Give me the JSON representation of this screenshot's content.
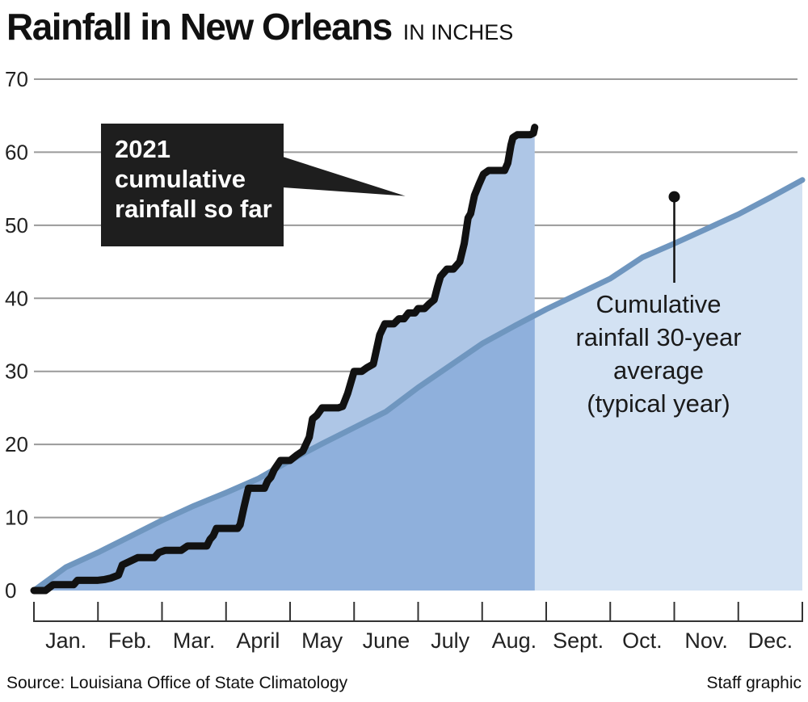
{
  "title": "Rainfall in New Orleans",
  "subtitle": "IN INCHES",
  "source": "Source: Louisiana Office of State Climatology",
  "credit": "Staff graphic",
  "colors": {
    "avg_line": "#6f96bf",
    "avg_fill": "#d3e2f3",
    "ytd_fill": "#aec6e6",
    "overlap_fill": "#8fb0dc",
    "line_2021": "#111111",
    "grid": "#9a9a9a",
    "callout_bg": "#1e1e1e"
  },
  "chart_data": {
    "type": "area",
    "ylim": [
      0,
      70
    ],
    "yticks": [
      0,
      10,
      20,
      30,
      40,
      50,
      60,
      70
    ],
    "ytick_labels": [
      "0",
      "10",
      "20",
      "30",
      "40",
      "50",
      "60",
      "70"
    ],
    "xlim": [
      0,
      12
    ],
    "months": [
      "Jan.",
      "Feb.",
      "Mar.",
      "April",
      "May",
      "June",
      "July",
      "Aug.",
      "Sept.",
      "Oct.",
      "Nov.",
      "Dec."
    ],
    "grid": true,
    "series": [
      {
        "name": "Cumulative rainfall 30-year average (typical year)",
        "x": [
          0,
          0.5,
          1,
          1.5,
          2,
          2.5,
          3,
          3.5,
          4,
          4.5,
          5,
          5.5,
          6,
          6.5,
          7,
          7.5,
          8,
          8.5,
          9,
          9.5,
          10,
          10.5,
          11,
          11.5,
          12
        ],
        "y": [
          0,
          3.2,
          5.2,
          7.4,
          9.6,
          11.6,
          13.4,
          15.3,
          17.8,
          20.1,
          22.3,
          24.5,
          27.8,
          30.8,
          33.8,
          36.2,
          38.5,
          40.6,
          42.7,
          45.6,
          47.5,
          49.5,
          51.5,
          53.8,
          56.2
        ]
      },
      {
        "name": "2021 cumulative rainfall so far",
        "x": [
          0,
          0.12,
          0.18,
          0.3,
          0.45,
          0.62,
          0.68,
          0.85,
          1.0,
          1.1,
          1.2,
          1.32,
          1.38,
          1.5,
          1.62,
          1.75,
          1.88,
          1.95,
          2.05,
          2.2,
          2.3,
          2.4,
          2.55,
          2.65,
          2.7,
          2.75,
          2.8,
          2.85,
          2.95,
          3.05,
          3.12,
          3.18,
          3.22,
          3.28,
          3.35,
          3.45,
          3.5,
          3.6,
          3.65,
          3.7,
          3.75,
          3.85,
          4.0,
          4.1,
          4.2,
          4.3,
          4.35,
          4.42,
          4.5,
          4.62,
          4.75,
          4.82,
          4.9,
          5.0,
          5.12,
          5.2,
          5.3,
          5.4,
          5.48,
          5.55,
          5.62,
          5.7,
          5.78,
          5.85,
          5.9,
          5.95,
          6.0,
          6.1,
          6.18,
          6.25,
          6.3,
          6.35,
          6.45,
          6.55,
          6.65,
          6.72,
          6.78,
          6.82,
          6.88,
          6.95,
          7.02,
          7.1,
          7.18,
          7.25,
          7.3,
          7.35,
          7.4,
          7.42,
          7.45,
          7.48,
          7.55,
          7.65,
          7.75,
          7.8,
          7.82
        ],
        "y": [
          0,
          0,
          0,
          0.8,
          0.8,
          0.8,
          1.4,
          1.4,
          1.4,
          1.5,
          1.7,
          2.1,
          3.5,
          4.0,
          4.5,
          4.5,
          4.5,
          5.2,
          5.5,
          5.5,
          5.5,
          6.1,
          6.1,
          6.1,
          6.1,
          7.0,
          7.5,
          8.5,
          8.5,
          8.5,
          8.5,
          8.5,
          9.0,
          11.4,
          14.0,
          14.0,
          14.0,
          14.0,
          15.0,
          15.5,
          16.5,
          17.8,
          17.8,
          18.5,
          19.1,
          21.0,
          23.5,
          24.0,
          25.0,
          25.0,
          25.0,
          25.2,
          27.0,
          30.0,
          30.0,
          30.5,
          31.0,
          35.0,
          36.5,
          36.5,
          36.5,
          37.2,
          37.2,
          38.0,
          38.0,
          38.0,
          38.6,
          38.6,
          39.3,
          39.8,
          41.5,
          43.0,
          44.0,
          44.0,
          45.0,
          47.5,
          51.0,
          51.6,
          54.1,
          55.6,
          57.0,
          57.5,
          57.5,
          57.5,
          57.5,
          57.5,
          58.5,
          59.5,
          61.0,
          62.0,
          62.4,
          62.4,
          62.4,
          62.6,
          63.4
        ]
      }
    ],
    "annotations": [
      {
        "lines": [
          "2021",
          "cumulative",
          "rainfall so far"
        ],
        "points_to": {
          "x": 5.8,
          "y": 54.0
        }
      },
      {
        "lines": [
          "Cumulative",
          "rainfall 30-year",
          "average",
          "(typical year)"
        ],
        "marker": {
          "x": 10.0,
          "y": 53.9
        }
      }
    ]
  }
}
